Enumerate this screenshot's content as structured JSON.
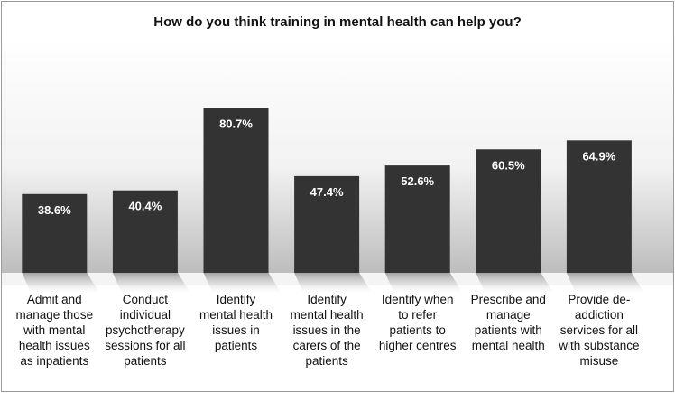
{
  "chart_data": {
    "type": "bar",
    "title": "How do you think training in mental health can help you?",
    "categories": [
      "Admit and manage those with mental health issues as inpatients",
      "Conduct individual psychotherapy sessions for all patients",
      "Identify mental health issues in patients",
      "Identify mental health issues in the carers of the patients",
      "Identify when to refer patients to higher centres",
      "Prescribe and manage patients with mental health",
      "Provide de-addiction services for all with substance misuse"
    ],
    "category_lines": [
      [
        "Admit and",
        "manage those",
        "with mental",
        "health issues",
        "as inpatients"
      ],
      [
        "Conduct",
        "individual",
        "psychotherapy",
        "sessions for all",
        "patients"
      ],
      [
        "Identify",
        "mental health",
        "issues in",
        "patients"
      ],
      [
        "Identify",
        "mental health",
        "issues in the",
        "carers of the",
        "patients"
      ],
      [
        "Identify when",
        "to refer",
        "patients to",
        "higher centres"
      ],
      [
        "Prescribe and",
        "manage",
        "patients with",
        "mental health"
      ],
      [
        "Provide de-",
        "addiction",
        "services for all",
        "with substance",
        "misuse"
      ]
    ],
    "values": [
      38.6,
      40.4,
      80.7,
      47.4,
      52.6,
      60.5,
      64.9
    ],
    "data_labels": [
      "38.6%",
      "40.4%",
      "80.7%",
      "47.4%",
      "52.6%",
      "60.5%",
      "64.9%"
    ],
    "xlabel": "",
    "ylabel": "",
    "ylim": [
      0,
      100
    ],
    "grid": false,
    "legend": "none",
    "colors": {
      "bar": "#333333",
      "bar_label": "#ffffff",
      "background_top": "#ffffff",
      "background_bottom": "#bdbdbd",
      "border": "#9a9a9a",
      "text": "#111111"
    }
  }
}
